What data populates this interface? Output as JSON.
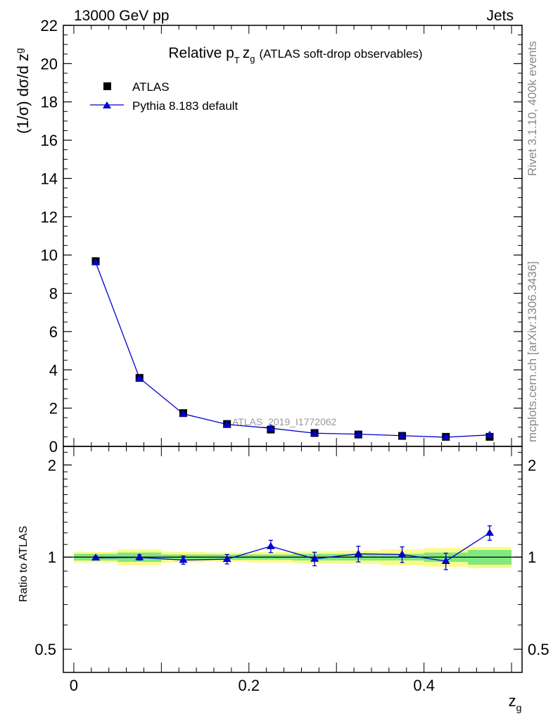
{
  "header": {
    "left": "13000 GeV pp",
    "right": "Jets"
  },
  "side": {
    "rivet": "Rivet 3.1.10,  400k events",
    "mcplots": "mcplots.cern.ch [arXiv:1306.3436]"
  },
  "colors": {
    "mc": "#0000cc",
    "data": "#000000",
    "band_inner": "#7fe87f",
    "band_outer": "#fbfb8c"
  },
  "chart_data": [
    {
      "type": "scatter",
      "panel": "main",
      "title_main": "Relative p",
      "title_sub_T": "T",
      "title_var": "z",
      "title_sub_g": "g",
      "title_rest": "(ATLAS soft-drop observables)",
      "ylabel": "(1/σ) dσ/d z",
      "ylabel_sub": "g",
      "watermark": "ATLAS_2019_I1772062",
      "xlim": [
        -0.012,
        0.512
      ],
      "ylim": [
        0,
        22
      ],
      "yticks": [
        0,
        2,
        4,
        6,
        8,
        10,
        12,
        14,
        16,
        18,
        20,
        22
      ],
      "ytick_labels": [
        "0",
        "2",
        "4",
        "6",
        "8",
        "10",
        "12",
        "14",
        "16",
        "18",
        "20",
        "22"
      ],
      "legend": {
        "data_label": "ATLAS",
        "mc_label": "Pythia 8.183 default",
        "position": "top-left"
      },
      "x": [
        0.025,
        0.075,
        0.125,
        0.175,
        0.225,
        0.275,
        0.325,
        0.375,
        0.425,
        0.475
      ],
      "series": [
        {
          "name": "ATLAS",
          "values": [
            9.68,
            3.58,
            1.74,
            1.17,
            0.88,
            0.7,
            0.62,
            0.55,
            0.5,
            0.5
          ]
        },
        {
          "name": "Pythia 8.183 default",
          "values": [
            9.61,
            3.57,
            1.7,
            1.15,
            0.95,
            0.69,
            0.64,
            0.56,
            0.48,
            0.6
          ]
        }
      ]
    },
    {
      "type": "scatter",
      "panel": "ratio",
      "ylabel": "Ratio to ATLAS",
      "xlabel": "z",
      "xlabel_sub": "g",
      "xlim": [
        -0.012,
        0.512
      ],
      "ylim": [
        0.42,
        2.3
      ],
      "ylog": true,
      "yticks": [
        0.5,
        1,
        2
      ],
      "ytick_labels": [
        "0.5",
        "1",
        "2"
      ],
      "xticks": [
        0,
        0.2,
        0.4
      ],
      "xtick_labels": [
        "0",
        "0.2",
        "0.4"
      ],
      "bins": [
        [
          0,
          0.05
        ],
        [
          0.05,
          0.1
        ],
        [
          0.1,
          0.15
        ],
        [
          0.15,
          0.2
        ],
        [
          0.2,
          0.25
        ],
        [
          0.25,
          0.3
        ],
        [
          0.3,
          0.35
        ],
        [
          0.35,
          0.4
        ],
        [
          0.4,
          0.45
        ],
        [
          0.45,
          0.5
        ]
      ],
      "band_inner": [
        0.025,
        0.035,
        0.02,
        0.02,
        0.02,
        0.025,
        0.025,
        0.025,
        0.035,
        0.055
      ],
      "band_outer": [
        0.04,
        0.06,
        0.04,
        0.035,
        0.04,
        0.045,
        0.05,
        0.06,
        0.07,
        0.08
      ],
      "x": [
        0.025,
        0.075,
        0.125,
        0.175,
        0.225,
        0.275,
        0.325,
        0.375,
        0.425,
        0.475
      ],
      "ratio": [
        0.995,
        0.998,
        0.978,
        0.985,
        1.085,
        0.987,
        1.025,
        1.02,
        0.97,
        1.2
      ],
      "ratio_err": [
        0.012,
        0.02,
        0.03,
        0.035,
        0.05,
        0.05,
        0.06,
        0.06,
        0.06,
        0.065
      ]
    }
  ]
}
